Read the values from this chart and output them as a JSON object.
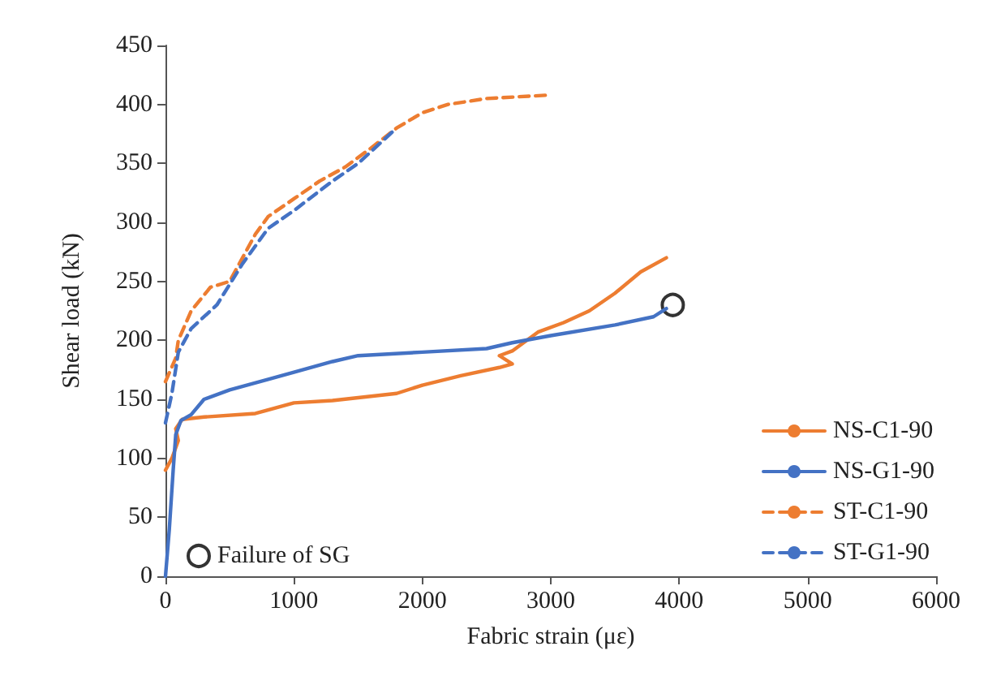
{
  "chart_data": {
    "type": "line",
    "xlabel": "Fabric strain (με)",
    "ylabel": "Shear load (kN)",
    "xlim": [
      0,
      6000
    ],
    "xticks": [
      0,
      1000,
      2000,
      3000,
      4000,
      5000,
      6000
    ],
    "ylim": [
      0,
      450
    ],
    "yticks": [
      0,
      50,
      100,
      150,
      200,
      250,
      300,
      350,
      400,
      450
    ],
    "grid": false,
    "legend": "right",
    "marker": "none",
    "series": [
      {
        "name": "NS-C1-90",
        "color": "#ed7d31",
        "line_style": "solid",
        "x": [
          0,
          50,
          100,
          80,
          130,
          300,
          700,
          1000,
          1300,
          1800,
          2000,
          2300,
          2600,
          2700,
          2600,
          2700,
          2900,
          3100,
          3300,
          3500,
          3700,
          3900
        ],
        "values": [
          90,
          100,
          115,
          125,
          133,
          135,
          138,
          147,
          149,
          155,
          162,
          170,
          177,
          180,
          187,
          191,
          207,
          215,
          225,
          240,
          258,
          270
        ]
      },
      {
        "name": "NS-G1-90",
        "color": "#4472c4",
        "line_style": "solid",
        "x": [
          0,
          30,
          60,
          80,
          120,
          200,
          300,
          500,
          800,
          1000,
          1300,
          1500,
          2000,
          2500,
          2700,
          3000,
          3500,
          3800,
          3900
        ],
        "values": [
          0,
          40,
          90,
          120,
          132,
          137,
          150,
          158,
          167,
          173,
          182,
          187,
          190,
          193,
          198,
          204,
          213,
          220,
          227
        ]
      },
      {
        "name": "ST-C1-90",
        "color": "#ed7d31",
        "line_style": "dashed",
        "x": [
          0,
          80,
          100,
          200,
          350,
          500,
          700,
          800,
          1000,
          1200,
          1400,
          1600,
          1800,
          2000,
          2200,
          2500,
          3000
        ],
        "values": [
          165,
          185,
          200,
          225,
          245,
          250,
          290,
          305,
          320,
          335,
          347,
          363,
          380,
          393,
          400,
          405,
          408
        ]
      },
      {
        "name": "ST-G1-90",
        "color": "#4472c4",
        "line_style": "dashed",
        "x": [
          0,
          50,
          100,
          200,
          400,
          600,
          800,
          1000,
          1300,
          1500,
          1800
        ],
        "values": [
          130,
          155,
          190,
          210,
          230,
          265,
          295,
          310,
          335,
          350,
          380
        ]
      },
      {
        "name": "Failure of SG",
        "type": "scatter",
        "marker": "circle",
        "color": "#000000",
        "x": [
          3950
        ],
        "values": [
          230
        ]
      }
    ]
  }
}
